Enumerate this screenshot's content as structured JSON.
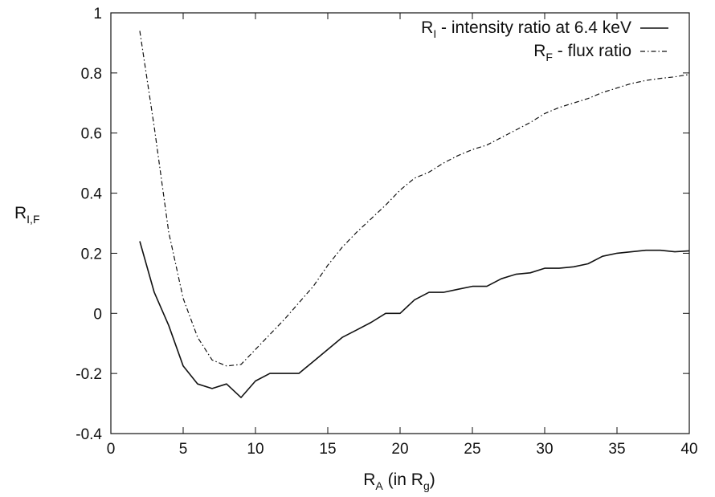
{
  "chart_data": {
    "type": "line",
    "xlabel": {
      "main": "R",
      "sub": "A",
      "rest": " (in R",
      "rest_sub": "g",
      "end": ")"
    },
    "ylabel": {
      "main": "R",
      "sub": "I,F"
    },
    "xlim": [
      0,
      40
    ],
    "ylim": [
      -0.4,
      1
    ],
    "x_ticks": [
      {
        "value": 0,
        "label": "0"
      },
      {
        "value": 5,
        "label": "5"
      },
      {
        "value": 10,
        "label": "10"
      },
      {
        "value": 15,
        "label": "15"
      },
      {
        "value": 20,
        "label": "20"
      },
      {
        "value": 25,
        "label": "25"
      },
      {
        "value": 30,
        "label": "30"
      },
      {
        "value": 35,
        "label": "35"
      },
      {
        "value": 40,
        "label": "40"
      }
    ],
    "y_ticks": [
      {
        "value": -0.4,
        "label": "-0.4"
      },
      {
        "value": -0.2,
        "label": "-0.2"
      },
      {
        "value": 0,
        "label": "0"
      },
      {
        "value": 0.2,
        "label": "0.2"
      },
      {
        "value": 0.4,
        "label": "0.4"
      },
      {
        "value": 0.6,
        "label": "0.6"
      },
      {
        "value": 0.8,
        "label": "0.8"
      },
      {
        "value": 1,
        "label": "1"
      }
    ],
    "grid": false,
    "legend_position": "top-right",
    "series": [
      {
        "legend_main": "R",
        "legend_sub": "I",
        "legend_rest": " - intensity ratio at 6.4 keV",
        "style": "solid",
        "color": "#111111",
        "points": [
          [
            2,
            0.24
          ],
          [
            3,
            0.07
          ],
          [
            4,
            -0.04
          ],
          [
            5,
            -0.175
          ],
          [
            6,
            -0.235
          ],
          [
            7,
            -0.25
          ],
          [
            8,
            -0.235
          ],
          [
            9,
            -0.28
          ],
          [
            10,
            -0.225
          ],
          [
            11,
            -0.2
          ],
          [
            12,
            -0.2
          ],
          [
            13,
            -0.2
          ],
          [
            14,
            -0.16
          ],
          [
            15,
            -0.12
          ],
          [
            16,
            -0.08
          ],
          [
            17,
            -0.055
          ],
          [
            18,
            -0.03
          ],
          [
            19,
            0.0
          ],
          [
            20,
            0.0
          ],
          [
            21,
            0.045
          ],
          [
            22,
            0.07
          ],
          [
            23,
            0.07
          ],
          [
            24,
            0.08
          ],
          [
            25,
            0.09
          ],
          [
            26,
            0.09
          ],
          [
            27,
            0.115
          ],
          [
            28,
            0.13
          ],
          [
            29,
            0.135
          ],
          [
            30,
            0.15
          ],
          [
            31,
            0.15
          ],
          [
            32,
            0.155
          ],
          [
            33,
            0.165
          ],
          [
            34,
            0.19
          ],
          [
            35,
            0.2
          ],
          [
            36,
            0.205
          ],
          [
            37,
            0.21
          ],
          [
            38,
            0.21
          ],
          [
            39,
            0.205
          ],
          [
            40,
            0.208
          ]
        ]
      },
      {
        "legend_main": "R",
        "legend_sub": "F",
        "legend_rest": " - flux ratio",
        "style": "dashdot",
        "color": "#111111",
        "points": [
          [
            2,
            0.94
          ],
          [
            3,
            0.62
          ],
          [
            4,
            0.27
          ],
          [
            5,
            0.05
          ],
          [
            6,
            -0.08
          ],
          [
            7,
            -0.155
          ],
          [
            8,
            -0.175
          ],
          [
            9,
            -0.17
          ],
          [
            10,
            -0.12
          ],
          [
            11,
            -0.07
          ],
          [
            12,
            -0.02
          ],
          [
            13,
            0.035
          ],
          [
            14,
            0.09
          ],
          [
            15,
            0.16
          ],
          [
            16,
            0.22
          ],
          [
            17,
            0.27
          ],
          [
            18,
            0.315
          ],
          [
            19,
            0.36
          ],
          [
            20,
            0.41
          ],
          [
            21,
            0.45
          ],
          [
            22,
            0.47
          ],
          [
            23,
            0.5
          ],
          [
            24,
            0.525
          ],
          [
            25,
            0.545
          ],
          [
            26,
            0.56
          ],
          [
            27,
            0.585
          ],
          [
            28,
            0.61
          ],
          [
            29,
            0.635
          ],
          [
            30,
            0.665
          ],
          [
            31,
            0.685
          ],
          [
            32,
            0.7
          ],
          [
            33,
            0.715
          ],
          [
            34,
            0.735
          ],
          [
            35,
            0.75
          ],
          [
            36,
            0.765
          ],
          [
            37,
            0.775
          ],
          [
            38,
            0.782
          ],
          [
            39,
            0.787
          ],
          [
            40,
            0.795
          ]
        ]
      }
    ]
  }
}
